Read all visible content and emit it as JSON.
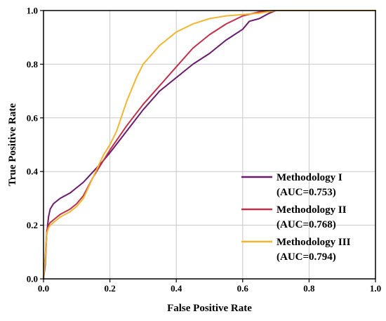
{
  "chart_data": {
    "type": "line",
    "title": "",
    "xlabel": "False Positive Rate",
    "ylabel": "True Positive Rate",
    "xlim": [
      0,
      1
    ],
    "ylim": [
      0,
      1
    ],
    "xticks": [
      "0.0",
      "0.2",
      "0.4",
      "0.6",
      "0.8",
      "1.0"
    ],
    "yticks": [
      "0.0",
      "0.2",
      "0.4",
      "0.6",
      "0.8",
      "1.0"
    ],
    "grid": true,
    "legend_position": "bottom-right",
    "series": [
      {
        "name": "Methodology I",
        "auc_label": "(AUC=0.753)",
        "color": "#6a1b6e",
        "x": [
          0,
          0.005,
          0.01,
          0.015,
          0.02,
          0.03,
          0.05,
          0.08,
          0.1,
          0.12,
          0.15,
          0.18,
          0.2,
          0.25,
          0.3,
          0.35,
          0.4,
          0.45,
          0.5,
          0.55,
          0.6,
          0.62,
          0.65,
          0.68,
          0.7,
          0.75,
          0.8,
          0.9,
          1.0
        ],
        "y": [
          0,
          0.05,
          0.17,
          0.23,
          0.26,
          0.28,
          0.3,
          0.32,
          0.34,
          0.36,
          0.4,
          0.44,
          0.47,
          0.55,
          0.63,
          0.7,
          0.75,
          0.8,
          0.84,
          0.89,
          0.93,
          0.96,
          0.97,
          0.99,
          1.0,
          1.0,
          1.0,
          1.0,
          1.0
        ]
      },
      {
        "name": "Methodology II",
        "auc_label": "(AUC=0.768)",
        "color": "#c0304a",
        "x": [
          0,
          0.005,
          0.01,
          0.015,
          0.02,
          0.03,
          0.05,
          0.08,
          0.1,
          0.12,
          0.15,
          0.18,
          0.2,
          0.25,
          0.3,
          0.35,
          0.4,
          0.45,
          0.5,
          0.55,
          0.6,
          0.65,
          0.7,
          0.8,
          0.9,
          1.0
        ],
        "y": [
          0,
          0.08,
          0.18,
          0.2,
          0.21,
          0.22,
          0.24,
          0.26,
          0.28,
          0.31,
          0.38,
          0.44,
          0.48,
          0.57,
          0.65,
          0.72,
          0.79,
          0.86,
          0.91,
          0.95,
          0.98,
          0.995,
          1.0,
          1.0,
          1.0,
          1.0
        ]
      },
      {
        "name": "Methodology III",
        "auc_label": "(AUC=0.794)",
        "color": "#f2b632",
        "x": [
          0,
          0.005,
          0.01,
          0.015,
          0.02,
          0.03,
          0.05,
          0.08,
          0.1,
          0.12,
          0.15,
          0.18,
          0.2,
          0.22,
          0.25,
          0.28,
          0.3,
          0.35,
          0.4,
          0.45,
          0.5,
          0.55,
          0.6,
          0.65,
          0.7,
          0.8,
          0.9,
          1.0
        ],
        "y": [
          0,
          0.07,
          0.17,
          0.19,
          0.2,
          0.21,
          0.23,
          0.25,
          0.27,
          0.3,
          0.38,
          0.46,
          0.5,
          0.55,
          0.66,
          0.75,
          0.8,
          0.87,
          0.92,
          0.95,
          0.97,
          0.98,
          0.985,
          0.99,
          1.0,
          1.0,
          1.0,
          1.0
        ]
      }
    ]
  }
}
